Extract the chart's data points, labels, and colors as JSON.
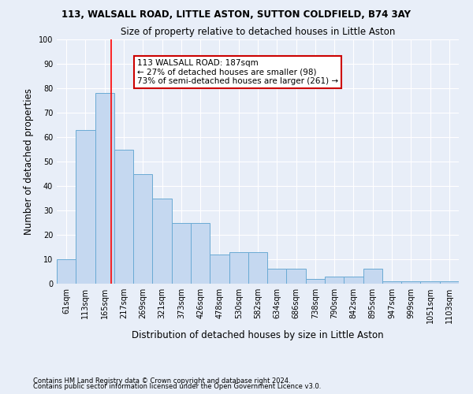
{
  "title": "113, WALSALL ROAD, LITTLE ASTON, SUTTON COLDFIELD, B74 3AY",
  "subtitle": "Size of property relative to detached houses in Little Aston",
  "xlabel": "Distribution of detached houses by size in Little Aston",
  "ylabel": "Number of detached properties",
  "bar_values": [
    10,
    63,
    78,
    55,
    45,
    35,
    25,
    25,
    12,
    13,
    13,
    6,
    6,
    2,
    3,
    3,
    6,
    1,
    1,
    1,
    1
  ],
  "bar_labels": [
    "61sqm",
    "113sqm",
    "165sqm",
    "217sqm",
    "269sqm",
    "321sqm",
    "373sqm",
    "426sqm",
    "478sqm",
    "530sqm",
    "582sqm",
    "634sqm",
    "686sqm",
    "738sqm",
    "790sqm",
    "842sqm",
    "895sqm",
    "947sqm",
    "999sqm",
    "1051sqm",
    "1103sqm"
  ],
  "bar_color": "#c5d8f0",
  "bar_edge_color": "#6aaad4",
  "annotation_text": "113 WALSALL ROAD: 187sqm\n← 27% of detached houses are smaller (98)\n73% of semi-detached houses are larger (261) →",
  "annotation_box_color": "#ffffff",
  "annotation_box_edge": "#cc0000",
  "red_line_x": 2.35,
  "ylim": [
    0,
    100
  ],
  "yticks": [
    0,
    10,
    20,
    30,
    40,
    50,
    60,
    70,
    80,
    90,
    100
  ],
  "footnote1": "Contains HM Land Registry data © Crown copyright and database right 2024.",
  "footnote2": "Contains public sector information licensed under the Open Government Licence v3.0.",
  "bg_color": "#e8eef8",
  "plot_bg_color": "#e8eef8",
  "grid_color": "#ffffff"
}
